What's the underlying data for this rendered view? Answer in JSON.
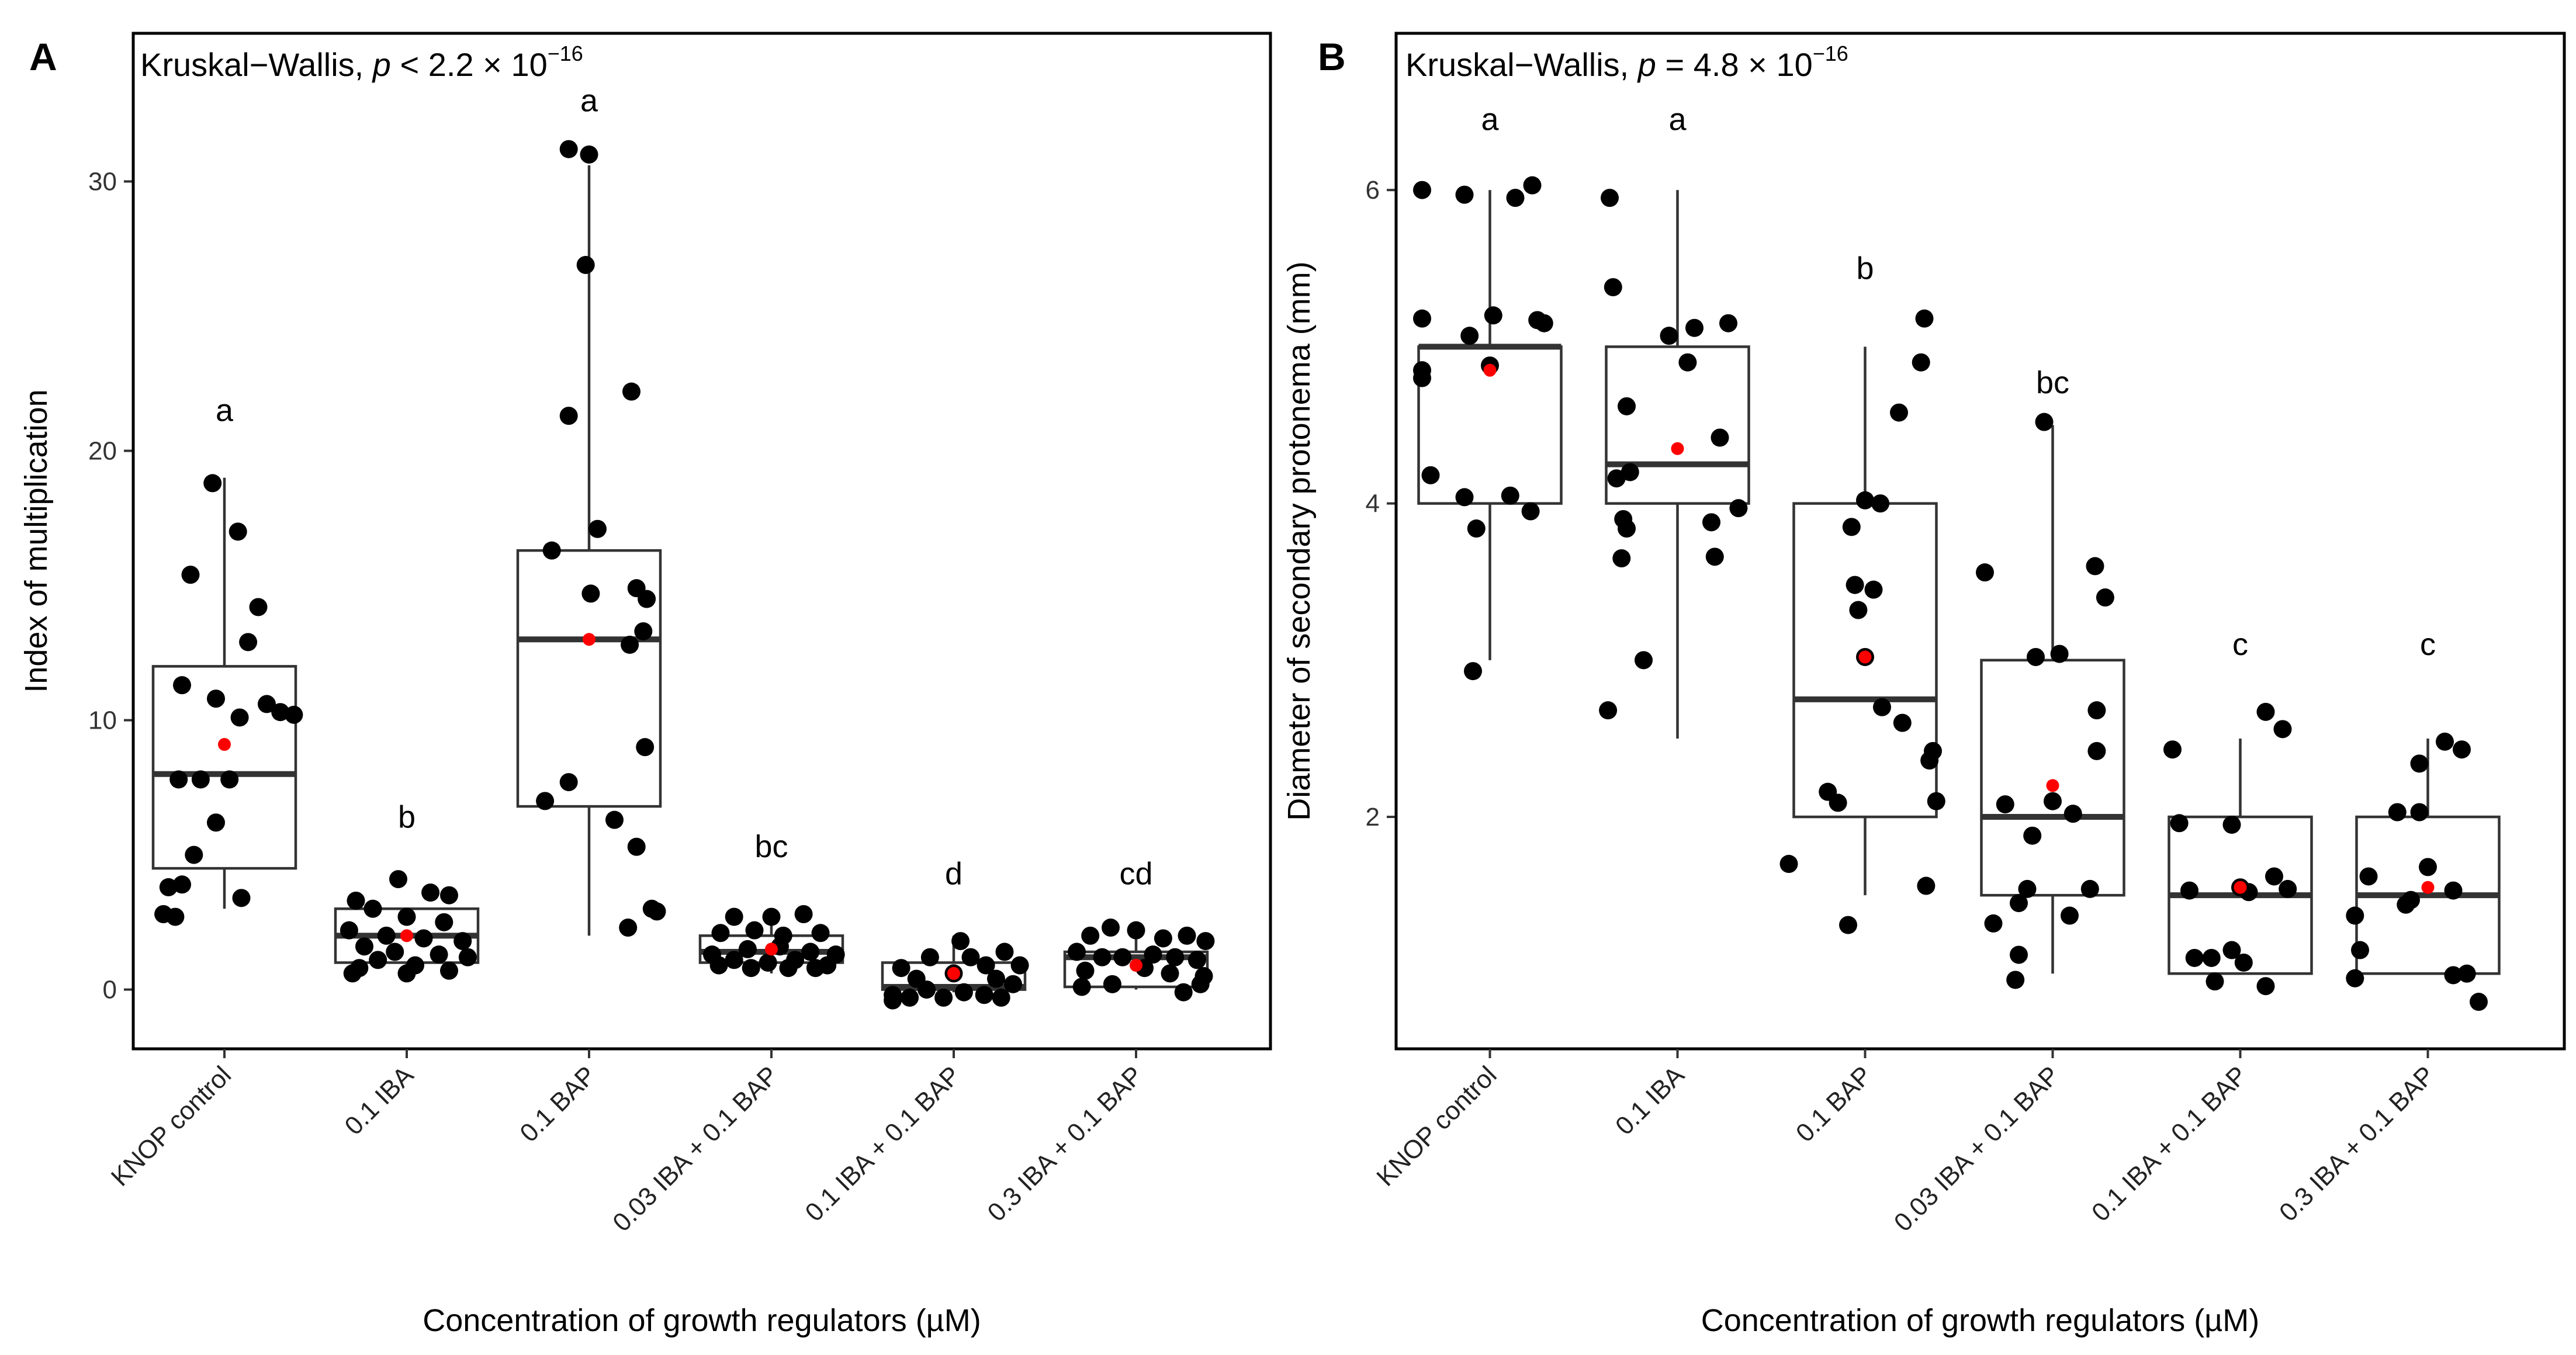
{
  "chart_data": [
    {
      "type": "boxplot",
      "panel_label": "A",
      "test_text": {
        "prefix": "Kruskal−Wallis, ",
        "p": "p",
        "relation": " < 2.2 × 10",
        "exponent": "−16"
      },
      "xlabel": "Concentration of growth regulators (µM)",
      "ylabel": "Index of multiplication",
      "ylim": [
        -2.2,
        35.5
      ],
      "yticks": [
        0,
        10,
        20,
        30
      ],
      "categories": [
        "KNOP control",
        "0.1 IBA",
        "0.1 BAP",
        "0.03 IBA + 0.1 BAP",
        "0.1 IBA + 0.1 BAP",
        "0.3 IBA + 0.1 BAP"
      ],
      "groups": [
        {
          "letter": "a",
          "letter_y": 21.5,
          "whisker_low": 3.0,
          "q1": 4.5,
          "median": 8.0,
          "q3": 12.0,
          "whisker_high": 19.0,
          "mean": 9.1,
          "points": [
            [
              -0.07,
              18.8
            ],
            [
              0.08,
              17.0
            ],
            [
              -0.2,
              15.4
            ],
            [
              0.2,
              14.2
            ],
            [
              0.14,
              12.9
            ],
            [
              -0.25,
              11.3
            ],
            [
              -0.05,
              10.8
            ],
            [
              0.25,
              10.6
            ],
            [
              0.33,
              10.3
            ],
            [
              0.41,
              10.2
            ],
            [
              0.09,
              10.1
            ],
            [
              -0.27,
              7.8
            ],
            [
              0.03,
              7.8
            ],
            [
              -0.14,
              7.8
            ],
            [
              -0.05,
              6.2
            ],
            [
              -0.18,
              5.0
            ],
            [
              -0.25,
              3.9
            ],
            [
              -0.33,
              3.8
            ],
            [
              0.1,
              3.4
            ],
            [
              -0.36,
              2.8
            ],
            [
              -0.29,
              2.7
            ]
          ]
        },
        {
          "letter": "b",
          "letter_y": 6.4,
          "whisker_low": 0.5,
          "q1": 1.0,
          "median": 2.0,
          "q3": 3.0,
          "whisker_high": 3.0,
          "mean": 2.0,
          "points": [
            [
              -0.3,
              3.3
            ],
            [
              -0.05,
              4.1
            ],
            [
              0.14,
              3.6
            ],
            [
              0.25,
              3.5
            ],
            [
              -0.2,
              3.0
            ],
            [
              0.0,
              2.7
            ],
            [
              0.22,
              2.5
            ],
            [
              -0.34,
              2.2
            ],
            [
              -0.12,
              2.0
            ],
            [
              0.1,
              1.9
            ],
            [
              0.33,
              1.8
            ],
            [
              -0.25,
              1.6
            ],
            [
              -0.07,
              1.4
            ],
            [
              0.19,
              1.3
            ],
            [
              0.36,
              1.2
            ],
            [
              -0.17,
              1.1
            ],
            [
              0.05,
              0.9
            ],
            [
              -0.28,
              0.8
            ],
            [
              0.25,
              0.7
            ],
            [
              -0.32,
              0.6
            ],
            [
              0.0,
              0.6
            ]
          ]
        },
        {
          "letter": "a",
          "letter_y": 33.0,
          "whisker_low": 2.0,
          "q1": 6.8,
          "median": 13.0,
          "q3": 16.3,
          "whisker_high": 30.6,
          "mean": 13.0,
          "points": [
            [
              -0.12,
              31.2
            ],
            [
              0.0,
              31.0
            ],
            [
              -0.02,
              26.9
            ],
            [
              0.25,
              22.2
            ],
            [
              -0.12,
              21.3
            ],
            [
              -0.22,
              16.3
            ],
            [
              0.05,
              17.1
            ],
            [
              0.01,
              14.7
            ],
            [
              0.28,
              14.9
            ],
            [
              0.34,
              14.5
            ],
            [
              0.32,
              13.3
            ],
            [
              0.24,
              12.8
            ],
            [
              0.33,
              9.0
            ],
            [
              -0.12,
              7.7
            ],
            [
              -0.26,
              7.0
            ],
            [
              0.15,
              6.3
            ],
            [
              0.28,
              5.3
            ],
            [
              0.37,
              3.0
            ],
            [
              0.4,
              2.9
            ],
            [
              0.23,
              2.3
            ]
          ]
        },
        {
          "letter": "bc",
          "letter_y": 5.3,
          "whisker_low": 0.6,
          "q1": 1.0,
          "median": 1.4,
          "q3": 2.0,
          "whisker_high": 3.0,
          "mean": 1.5,
          "points": [
            [
              -0.22,
              2.7
            ],
            [
              0.0,
              2.7
            ],
            [
              0.19,
              2.8
            ],
            [
              -0.3,
              2.1
            ],
            [
              -0.1,
              2.2
            ],
            [
              0.07,
              2.0
            ],
            [
              0.29,
              2.1
            ],
            [
              -0.35,
              1.3
            ],
            [
              -0.14,
              1.5
            ],
            [
              0.05,
              1.6
            ],
            [
              0.23,
              1.4
            ],
            [
              0.38,
              1.3
            ],
            [
              -0.22,
              1.1
            ],
            [
              -0.02,
              1.0
            ],
            [
              0.14,
              1.1
            ],
            [
              0.33,
              0.9
            ],
            [
              -0.31,
              0.9
            ],
            [
              0.1,
              0.8
            ],
            [
              0.26,
              0.8
            ],
            [
              -0.12,
              0.8
            ]
          ]
        },
        {
          "letter": "d",
          "letter_y": 4.3,
          "whisker_low": -0.1,
          "q1": 0.0,
          "median": 0.1,
          "q3": 1.0,
          "whisker_high": 2.0,
          "mean": 0.6,
          "points": [
            [
              -0.14,
              1.2
            ],
            [
              0.1,
              1.2
            ],
            [
              0.3,
              1.4
            ],
            [
              -0.31,
              0.8
            ],
            [
              0.04,
              1.8
            ],
            [
              0.19,
              0.9
            ],
            [
              0.39,
              0.9
            ],
            [
              -0.22,
              0.4
            ],
            [
              0.0,
              0.6
            ],
            [
              0.25,
              0.4
            ],
            [
              -0.36,
              -0.2
            ],
            [
              -0.16,
              0.0
            ],
            [
              0.06,
              -0.1
            ],
            [
              0.35,
              0.2
            ],
            [
              -0.26,
              -0.3
            ],
            [
              -0.06,
              -0.3
            ],
            [
              0.18,
              -0.2
            ],
            [
              0.28,
              -0.3
            ],
            [
              -0.36,
              -0.4
            ]
          ]
        },
        {
          "letter": "cd",
          "letter_y": 4.3,
          "whisker_low": 0.0,
          "q1": 0.1,
          "median": 1.2,
          "q3": 1.4,
          "whisker_high": 2.0,
          "mean": 0.9,
          "points": [
            [
              -0.27,
              2.0
            ],
            [
              -0.15,
              2.3
            ],
            [
              0.0,
              2.2
            ],
            [
              0.16,
              1.9
            ],
            [
              0.3,
              2.0
            ],
            [
              0.41,
              1.8
            ],
            [
              -0.35,
              1.4
            ],
            [
              -0.2,
              1.2
            ],
            [
              -0.08,
              1.2
            ],
            [
              0.1,
              1.3
            ],
            [
              0.23,
              1.2
            ],
            [
              0.36,
              1.1
            ],
            [
              -0.3,
              0.7
            ],
            [
              0.05,
              0.8
            ],
            [
              0.2,
              0.6
            ],
            [
              0.4,
              0.5
            ],
            [
              -0.32,
              0.1
            ],
            [
              -0.14,
              0.2
            ],
            [
              0.28,
              -0.1
            ],
            [
              0.38,
              0.2
            ]
          ]
        }
      ]
    },
    {
      "type": "boxplot",
      "panel_label": "B",
      "test_text": {
        "prefix": "Kruskal−Wallis, ",
        "p": "p",
        "relation": " = 4.8 × 10",
        "exponent": "−16"
      },
      "xlabel": "Concentration of growth regulators (µM)",
      "ylabel": "Diameter of secondary protonema (mm)",
      "ylim": [
        0.52,
        7.0
      ],
      "yticks": [
        2,
        4,
        6
      ],
      "categories": [
        "KNOP control",
        "0.1 IBA",
        "0.1 BAP",
        "0.03 IBA + 0.1 BAP",
        "0.1 IBA + 0.1 BAP",
        "0.3 IBA + 0.1 BAP"
      ],
      "groups": [
        {
          "letter": "a",
          "letter_y": 6.45,
          "whisker_low": 3.0,
          "q1": 4.0,
          "median": 5.0,
          "q3": 5.0,
          "whisker_high": 6.0,
          "mean": 4.85,
          "points": [
            [
              -0.4,
              6.0
            ],
            [
              -0.15,
              5.97
            ],
            [
              0.15,
              5.95
            ],
            [
              0.25,
              6.03
            ],
            [
              -0.4,
              5.18
            ],
            [
              -0.12,
              5.07
            ],
            [
              0.02,
              5.2
            ],
            [
              0.32,
              5.15
            ],
            [
              0.28,
              5.17
            ],
            [
              -0.4,
              4.85
            ],
            [
              -0.4,
              4.8
            ],
            [
              -0.35,
              4.18
            ],
            [
              0.0,
              4.88
            ],
            [
              -0.15,
              4.04
            ],
            [
              0.12,
              4.05
            ],
            [
              0.24,
              3.95
            ],
            [
              -0.08,
              3.84
            ],
            [
              -0.1,
              2.93
            ]
          ]
        },
        {
          "letter": "a",
          "letter_y": 6.45,
          "whisker_low": 2.5,
          "q1": 4.0,
          "median": 4.25,
          "q3": 5.0,
          "whisker_high": 6.0,
          "mean": 4.35,
          "points": [
            [
              -0.4,
              5.95
            ],
            [
              -0.38,
              5.38
            ],
            [
              -0.05,
              5.07
            ],
            [
              0.1,
              5.12
            ],
            [
              0.3,
              5.15
            ],
            [
              -0.3,
              4.62
            ],
            [
              0.06,
              4.9
            ],
            [
              -0.36,
              4.16
            ],
            [
              -0.28,
              4.2
            ],
            [
              -0.32,
              3.9
            ],
            [
              0.25,
              4.42
            ],
            [
              0.36,
              3.97
            ],
            [
              -0.3,
              3.84
            ],
            [
              0.2,
              3.88
            ],
            [
              -0.33,
              3.65
            ],
            [
              0.22,
              3.66
            ],
            [
              -0.2,
              3.0
            ],
            [
              -0.41,
              2.68
            ]
          ]
        },
        {
          "letter": "b",
          "letter_y": 5.5,
          "whisker_low": 1.5,
          "q1": 2.0,
          "median": 2.75,
          "q3": 4.0,
          "whisker_high": 5.0,
          "mean": 3.02,
          "points": [
            [
              0.35,
              5.18
            ],
            [
              0.33,
              4.9
            ],
            [
              0.2,
              4.58
            ],
            [
              0.0,
              4.02
            ],
            [
              0.09,
              4.0
            ],
            [
              -0.08,
              3.85
            ],
            [
              -0.06,
              3.48
            ],
            [
              0.05,
              3.45
            ],
            [
              -0.04,
              3.32
            ],
            [
              0.0,
              3.02
            ],
            [
              0.1,
              2.7
            ],
            [
              0.22,
              2.6
            ],
            [
              0.4,
              2.42
            ],
            [
              0.38,
              2.36
            ],
            [
              0.42,
              2.1
            ],
            [
              -0.22,
              2.16
            ],
            [
              -0.16,
              2.09
            ],
            [
              -0.45,
              1.7
            ],
            [
              0.36,
              1.56
            ],
            [
              -0.1,
              1.31
            ]
          ]
        },
        {
          "letter": "bc",
          "letter_y": 4.77,
          "whisker_low": 1.0,
          "q1": 1.5,
          "median": 2.0,
          "q3": 3.0,
          "whisker_high": 4.5,
          "mean": 2.2,
          "points": [
            [
              -0.05,
              4.52
            ],
            [
              0.25,
              3.6
            ],
            [
              -0.4,
              3.56
            ],
            [
              0.31,
              3.4
            ],
            [
              -0.1,
              3.02
            ],
            [
              0.04,
              3.04
            ],
            [
              0.26,
              2.68
            ],
            [
              0.26,
              2.42
            ],
            [
              -0.28,
              2.08
            ],
            [
              0.0,
              2.1
            ],
            [
              0.12,
              2.02
            ],
            [
              -0.12,
              1.88
            ],
            [
              -0.15,
              1.54
            ],
            [
              -0.2,
              1.45
            ],
            [
              0.22,
              1.54
            ],
            [
              -0.35,
              1.32
            ],
            [
              0.1,
              1.37
            ],
            [
              -0.2,
              1.12
            ],
            [
              -0.22,
              0.96
            ]
          ]
        },
        {
          "letter": "c",
          "letter_y": 3.1,
          "whisker_low": 1.0,
          "q1": 1.0,
          "median": 1.5,
          "q3": 2.0,
          "whisker_high": 2.5,
          "mean": 1.55,
          "points": [
            [
              0.15,
              2.67
            ],
            [
              0.25,
              2.56
            ],
            [
              -0.4,
              2.43
            ],
            [
              -0.36,
              1.96
            ],
            [
              -0.05,
              1.95
            ],
            [
              0.2,
              1.62
            ],
            [
              0.28,
              1.54
            ],
            [
              0.0,
              1.55
            ],
            [
              -0.3,
              1.53
            ],
            [
              0.05,
              1.52
            ],
            [
              -0.05,
              1.15
            ],
            [
              -0.27,
              1.1
            ],
            [
              -0.17,
              1.1
            ],
            [
              0.02,
              1.07
            ],
            [
              -0.15,
              0.95
            ],
            [
              0.15,
              0.92
            ]
          ]
        },
        {
          "letter": "c",
          "letter_y": 3.1,
          "whisker_low": 1.0,
          "q1": 1.0,
          "median": 1.5,
          "q3": 2.0,
          "whisker_high": 2.5,
          "mean": 1.55,
          "points": [
            [
              0.1,
              2.48
            ],
            [
              0.2,
              2.43
            ],
            [
              -0.05,
              2.34
            ],
            [
              -0.05,
              2.03
            ],
            [
              -0.18,
              2.03
            ],
            [
              -0.35,
              1.62
            ],
            [
              -0.13,
              1.44
            ],
            [
              -0.1,
              1.47
            ],
            [
              0.0,
              1.68
            ],
            [
              0.15,
              1.53
            ],
            [
              -0.43,
              1.37
            ],
            [
              -0.4,
              1.15
            ],
            [
              0.15,
              0.99
            ],
            [
              0.23,
              1.0
            ],
            [
              -0.43,
              0.97
            ],
            [
              0.3,
              0.82
            ]
          ]
        }
      ]
    }
  ]
}
